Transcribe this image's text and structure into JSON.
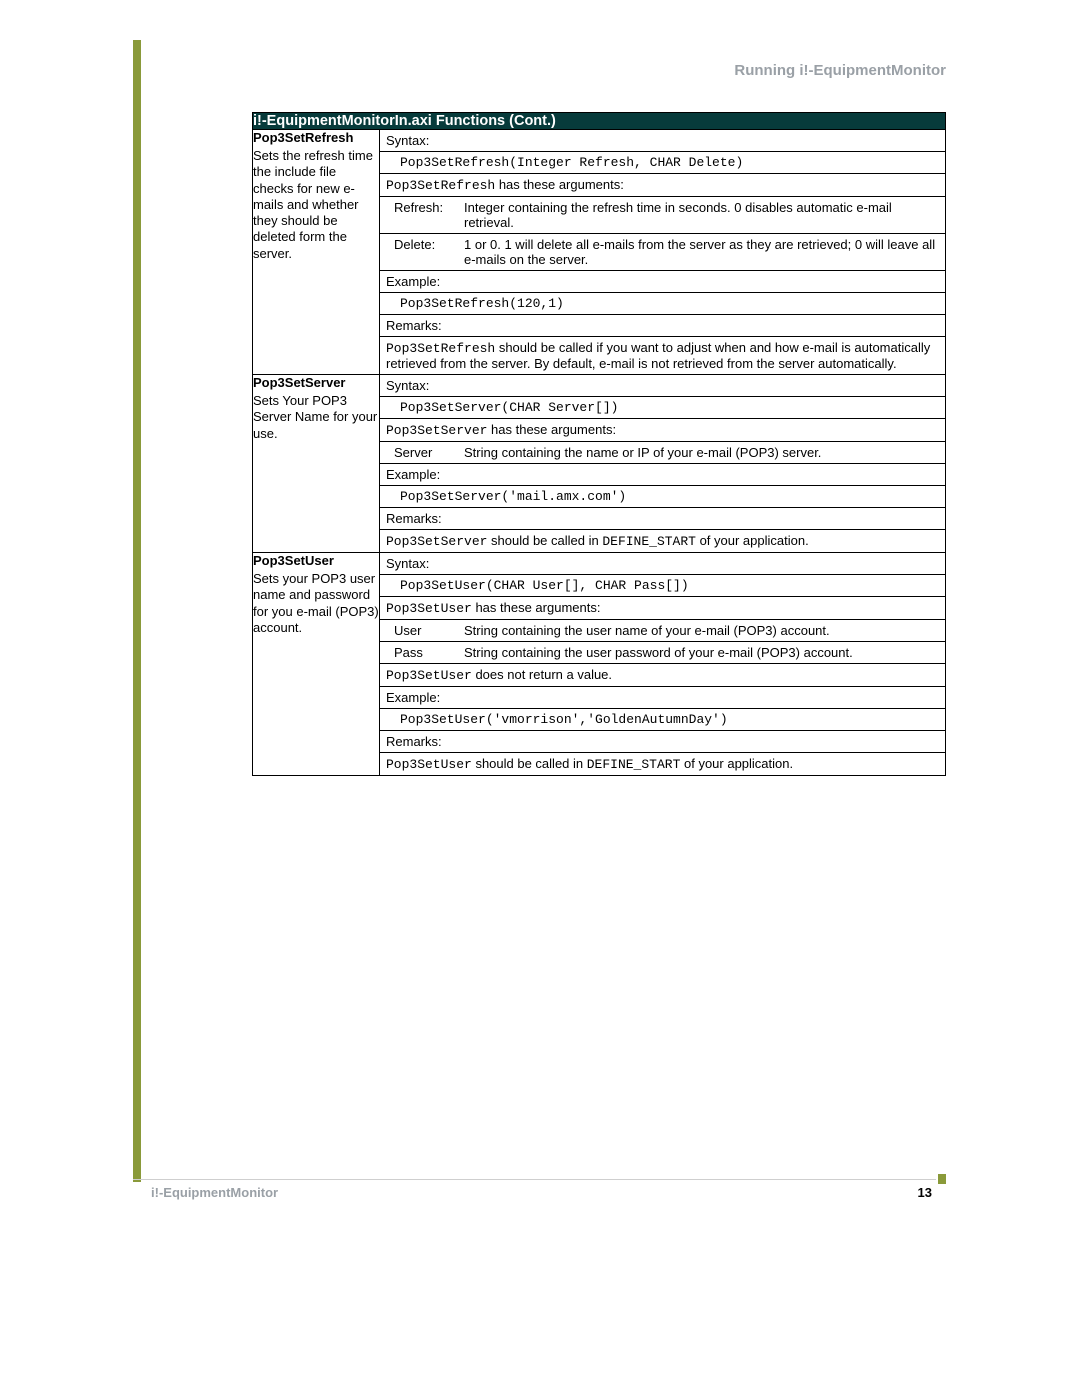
{
  "colors": {
    "accent": "#8a9a3a",
    "banner_bg": "#073b3b",
    "banner_fg": "#ffffff",
    "header_gray": "#9aa0a6",
    "border": "#000000"
  },
  "header": {
    "running_title": "Running i!-EquipmentMonitor"
  },
  "table": {
    "title": "i!-EquipmentMonitorIn.axi Functions (Cont.)",
    "rows": [
      {
        "name": "Pop3SetRefresh",
        "desc": "Sets the refresh time the include file checks for new e-mails and whether they should be deleted form the server.",
        "syntax_label": "Syntax:",
        "syntax_code": "Pop3SetRefresh(Integer Refresh, CHAR Delete)",
        "args_intro_code": "Pop3SetRefresh",
        "args_intro_text": " has these arguments:",
        "args": [
          {
            "name": "Refresh:",
            "desc": "Integer containing the refresh time in seconds. 0 disables automatic e-mail retrieval."
          },
          {
            "name": "Delete:",
            "desc": "1 or 0. 1 will delete all e-mails from the server as they are retrieved; 0 will leave all e-mails on the server."
          }
        ],
        "example_label": "Example:",
        "example_code": "Pop3SetRefresh(120,1)",
        "remarks_label": "Remarks:",
        "remarks_code": "Pop3SetRefresh",
        "remarks_text": " should be called if you want to adjust when and how e-mail is automatically retrieved from the server. By default, e-mail is not retrieved from the server automatically."
      },
      {
        "name": "Pop3SetServer",
        "desc": "Sets Your POP3 Server Name for your use.",
        "syntax_label": "Syntax:",
        "syntax_code": "Pop3SetServer(CHAR Server[])",
        "args_intro_code": "Pop3SetServer",
        "args_intro_text": " has these arguments:",
        "args": [
          {
            "name": "Server",
            "desc": "String containing the name or IP of your e-mail (POP3) server."
          }
        ],
        "example_label": "Example:",
        "example_code": "Pop3SetServer('mail.amx.com')",
        "remarks_label": "Remarks:",
        "remarks_code": "Pop3SetServer",
        "remarks_mid": " should be called in ",
        "remarks_code2": "DEFINE_START",
        "remarks_tail": " of your application."
      },
      {
        "name": "Pop3SetUser",
        "desc": "Sets your POP3 user name and password for you e-mail (POP3) account.",
        "syntax_label": "Syntax:",
        "syntax_code": "Pop3SetUser(CHAR User[], CHAR Pass[])",
        "args_intro_code": "Pop3SetUser",
        "args_intro_text": " has these arguments:",
        "args": [
          {
            "name": "User",
            "desc": "String containing the user name of your e-mail (POP3) account."
          },
          {
            "name": "Pass",
            "desc": "String containing the user password of your e-mail (POP3) account."
          }
        ],
        "noreturn_code": "Pop3SetUser",
        "noreturn_text": " does not return a value.",
        "example_label": "Example:",
        "example_code": "Pop3SetUser('vmorrison','GoldenAutumnDay')",
        "remarks_label": "Remarks:",
        "remarks_code": "Pop3SetUser",
        "remarks_mid": " should be called in ",
        "remarks_code2": "DEFINE_START",
        "remarks_tail": " of your application."
      }
    ]
  },
  "footer": {
    "left": "i!-EquipmentMonitor",
    "page": "13"
  }
}
